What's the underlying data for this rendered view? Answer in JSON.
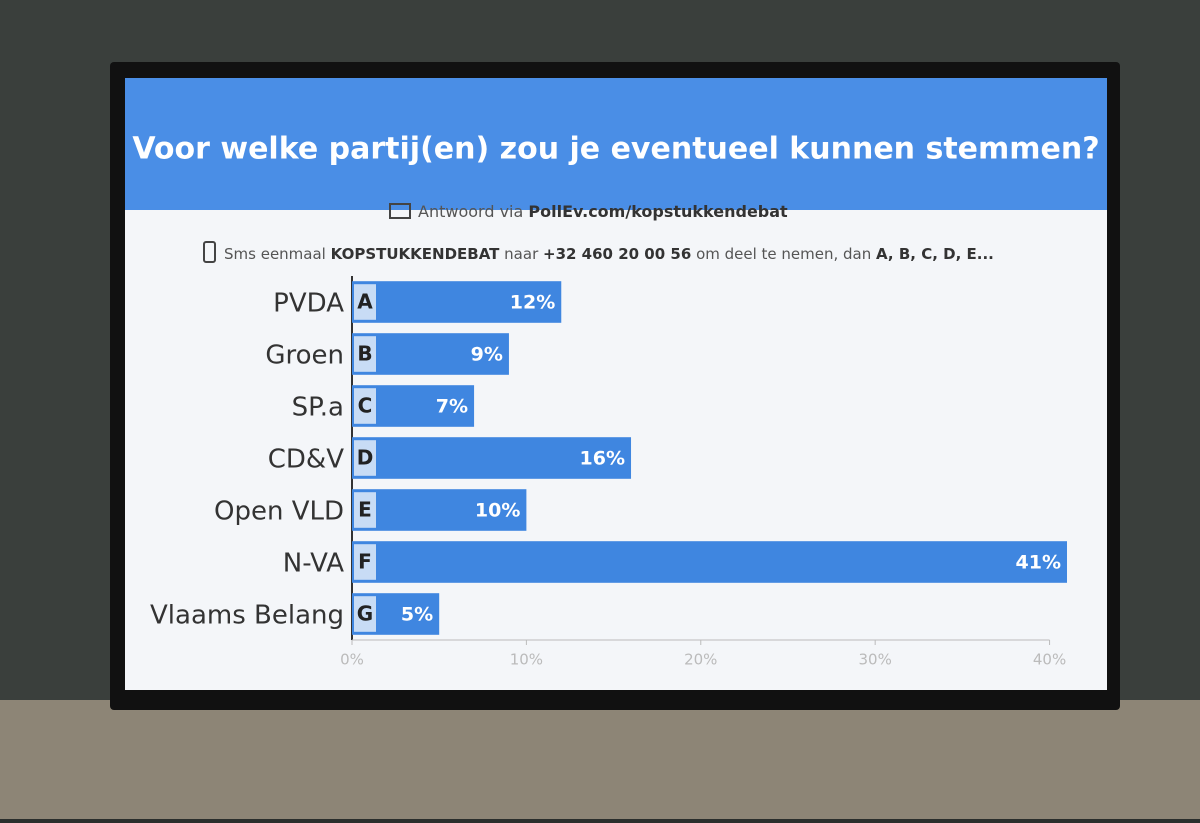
{
  "chart_data": {
    "type": "bar",
    "orientation": "horizontal",
    "title": "Voor welke partij(en) zou je eventueel kunnen stemmen?",
    "instructions": {
      "line1": [
        "Antwoord via",
        "PollEv.com/kopstukkendebat"
      ],
      "line2": [
        "Sms eenmaal",
        "KOPSTUKKENDEBAT",
        "naar",
        "+32 460 20 00 56",
        "om deel te nemen, dan",
        "A, B, C, D, E..."
      ]
    },
    "categories": [
      "PVDA",
      "Groen",
      "SP.a",
      "CD&V",
      "Open VLD",
      "N-VA",
      "Vlaams Belang"
    ],
    "letters": [
      "A",
      "B",
      "C",
      "D",
      "E",
      "F",
      "G"
    ],
    "values": [
      12,
      9,
      7,
      16,
      10,
      41,
      5
    ],
    "value_labels": [
      "12%",
      "9%",
      "7%",
      "16%",
      "10%",
      "41%",
      "5%"
    ],
    "color": "#3f86e0",
    "xlim": [
      0,
      41
    ],
    "xticks": [
      {
        "value": 0,
        "label": "0%"
      },
      {
        "value": 10,
        "label": "10%"
      },
      {
        "value": 20,
        "label": "20%"
      },
      {
        "value": 30,
        "label": "30%"
      },
      {
        "value": 40,
        "label": "40%"
      }
    ]
  }
}
